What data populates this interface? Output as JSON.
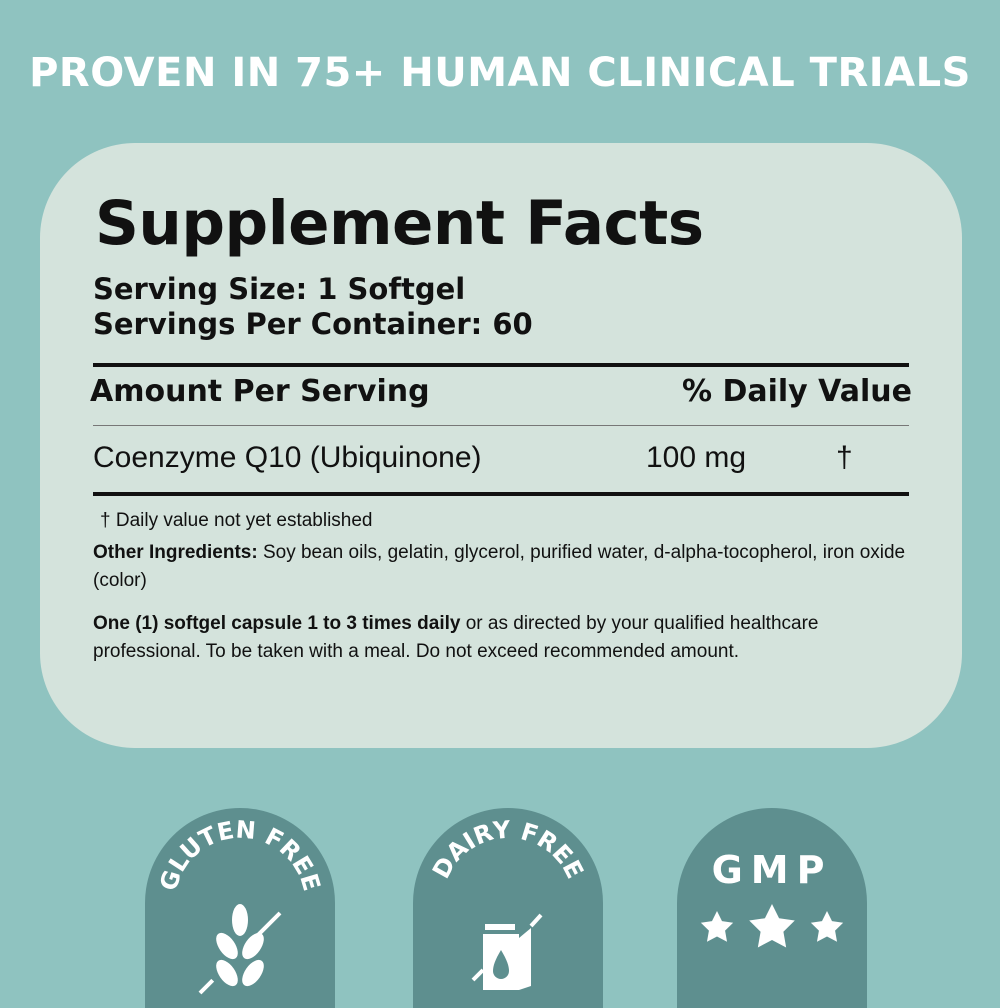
{
  "headline": "PROVEN IN 75+ HUMAN CLINICAL TRIALS",
  "facts": {
    "title": "Supplement Facts",
    "serving_size": "Serving Size: 1 Softgel",
    "servings_per_container": "Servings Per Container: 60",
    "amount_header": "Amount Per Serving",
    "dv_header": "% Daily Value",
    "rows": [
      {
        "name": "Coenzyme Q10 (Ubiquinone)",
        "amount": "100 mg",
        "dv": "†"
      }
    ],
    "footnote": "†  Daily value not yet established",
    "other_label": "Other Ingredients:",
    "other_text": " Soy bean oils, gelatin, glycerol, purified water, d-alpha-tocopherol, iron oxide (color)",
    "directions_bold": "One (1) softgel capsule 1 to 3 times daily",
    "directions_text": " or as directed by your qualified healthcare professional. To be taken with a meal. Do not exceed recommended amount."
  },
  "badges": [
    {
      "label": "GLUTEN FREE",
      "icon": "wheat-crossed-icon"
    },
    {
      "label": "DAIRY FREE",
      "icon": "milk-carton-crossed-icon"
    },
    {
      "label": "GMP",
      "icon": "three-stars-icon"
    }
  ],
  "colors": {
    "background": "#8fc3c0",
    "card": "#d4e3dc",
    "badge": "#5e8f8f"
  }
}
